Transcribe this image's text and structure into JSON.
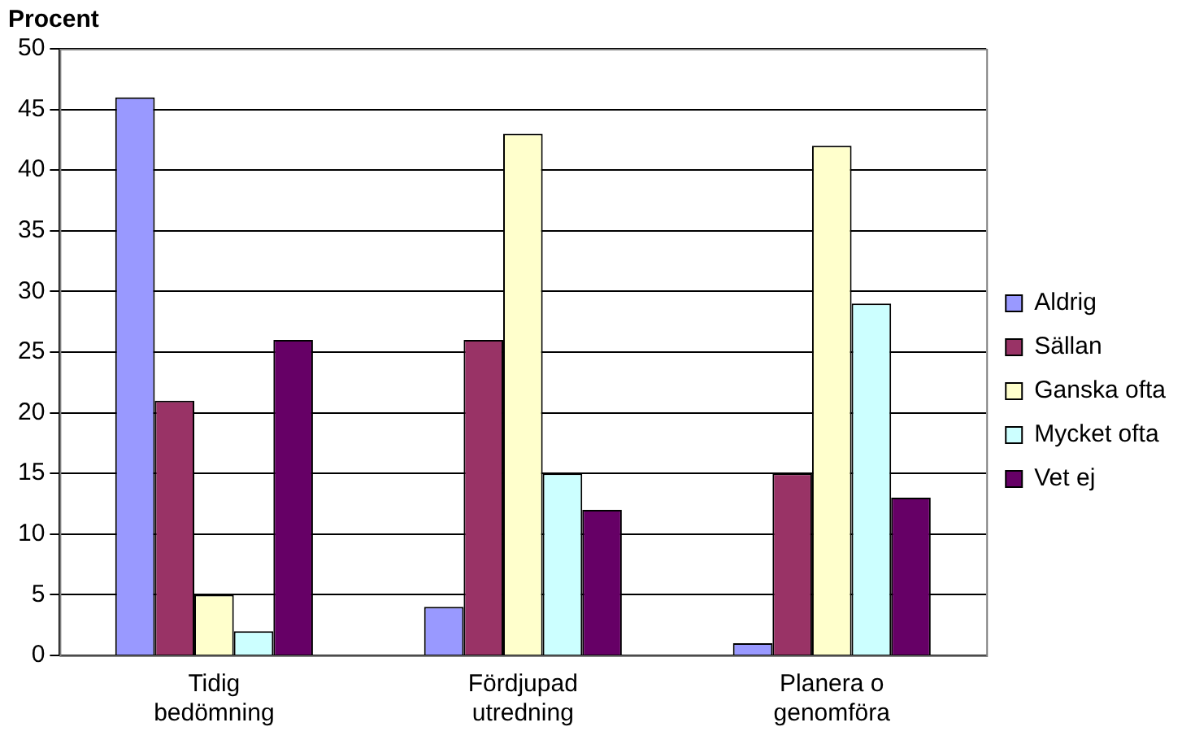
{
  "chart_data": {
    "type": "bar",
    "ylabel": "Procent",
    "categories": [
      "Tidig bedömning",
      "Fördjupad utredning",
      "Planera o genomföra"
    ],
    "series": [
      {
        "name": "Aldrig",
        "color": "#9999ff",
        "values": [
          46,
          4,
          1
        ]
      },
      {
        "name": "Sällan",
        "color": "#993366",
        "values": [
          21,
          26,
          15
        ]
      },
      {
        "name": "Ganska ofta",
        "color": "#ffffcc",
        "values": [
          5,
          43,
          42
        ]
      },
      {
        "name": "Mycket ofta",
        "color": "#ccffff",
        "values": [
          2,
          15,
          29
        ]
      },
      {
        "name": "Vet ej",
        "color": "#660066",
        "values": [
          26,
          12,
          13
        ]
      }
    ],
    "ylim": [
      0,
      50
    ],
    "yticks": [
      0,
      5,
      10,
      15,
      20,
      25,
      30,
      35,
      40,
      45,
      50
    ],
    "grid": "y",
    "legend": "right"
  }
}
